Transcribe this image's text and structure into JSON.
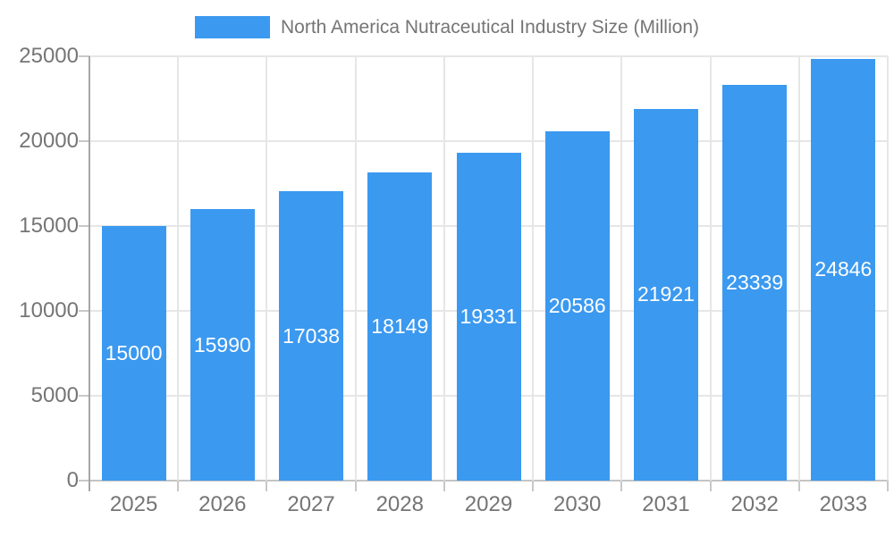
{
  "legend": {
    "label": "North America Nutraceutical Industry Size (Million)"
  },
  "chart_data": {
    "type": "bar",
    "title": "North America Nutraceutical Industry Size (Million)",
    "series_name": "North America Nutraceutical Industry Size (Million)",
    "categories": [
      "2025",
      "2026",
      "2027",
      "2028",
      "2029",
      "2030",
      "2031",
      "2032",
      "2033"
    ],
    "values": [
      15000,
      15990,
      17038,
      18149,
      19331,
      20586,
      21921,
      23339,
      24846
    ],
    "value_labels": [
      "15000",
      "15990",
      "17038",
      "18149",
      "19331",
      "20586",
      "21921",
      "23339",
      "24846"
    ],
    "xlabel": "",
    "ylabel": "",
    "ylim": [
      0,
      25000
    ],
    "yticks": [
      0,
      5000,
      10000,
      15000,
      20000,
      25000
    ],
    "grid": true,
    "legend_position": "top",
    "colors": {
      "bar": "#3B99F0",
      "value_label": "#FFFFFF",
      "axis_text": "#757575",
      "gridline": "#E6E6E6",
      "zero_line": "#C4C4C4",
      "tick": "#C8C8C8",
      "axis_line": "#A6A6A6",
      "background": "#FFFFFF"
    }
  }
}
